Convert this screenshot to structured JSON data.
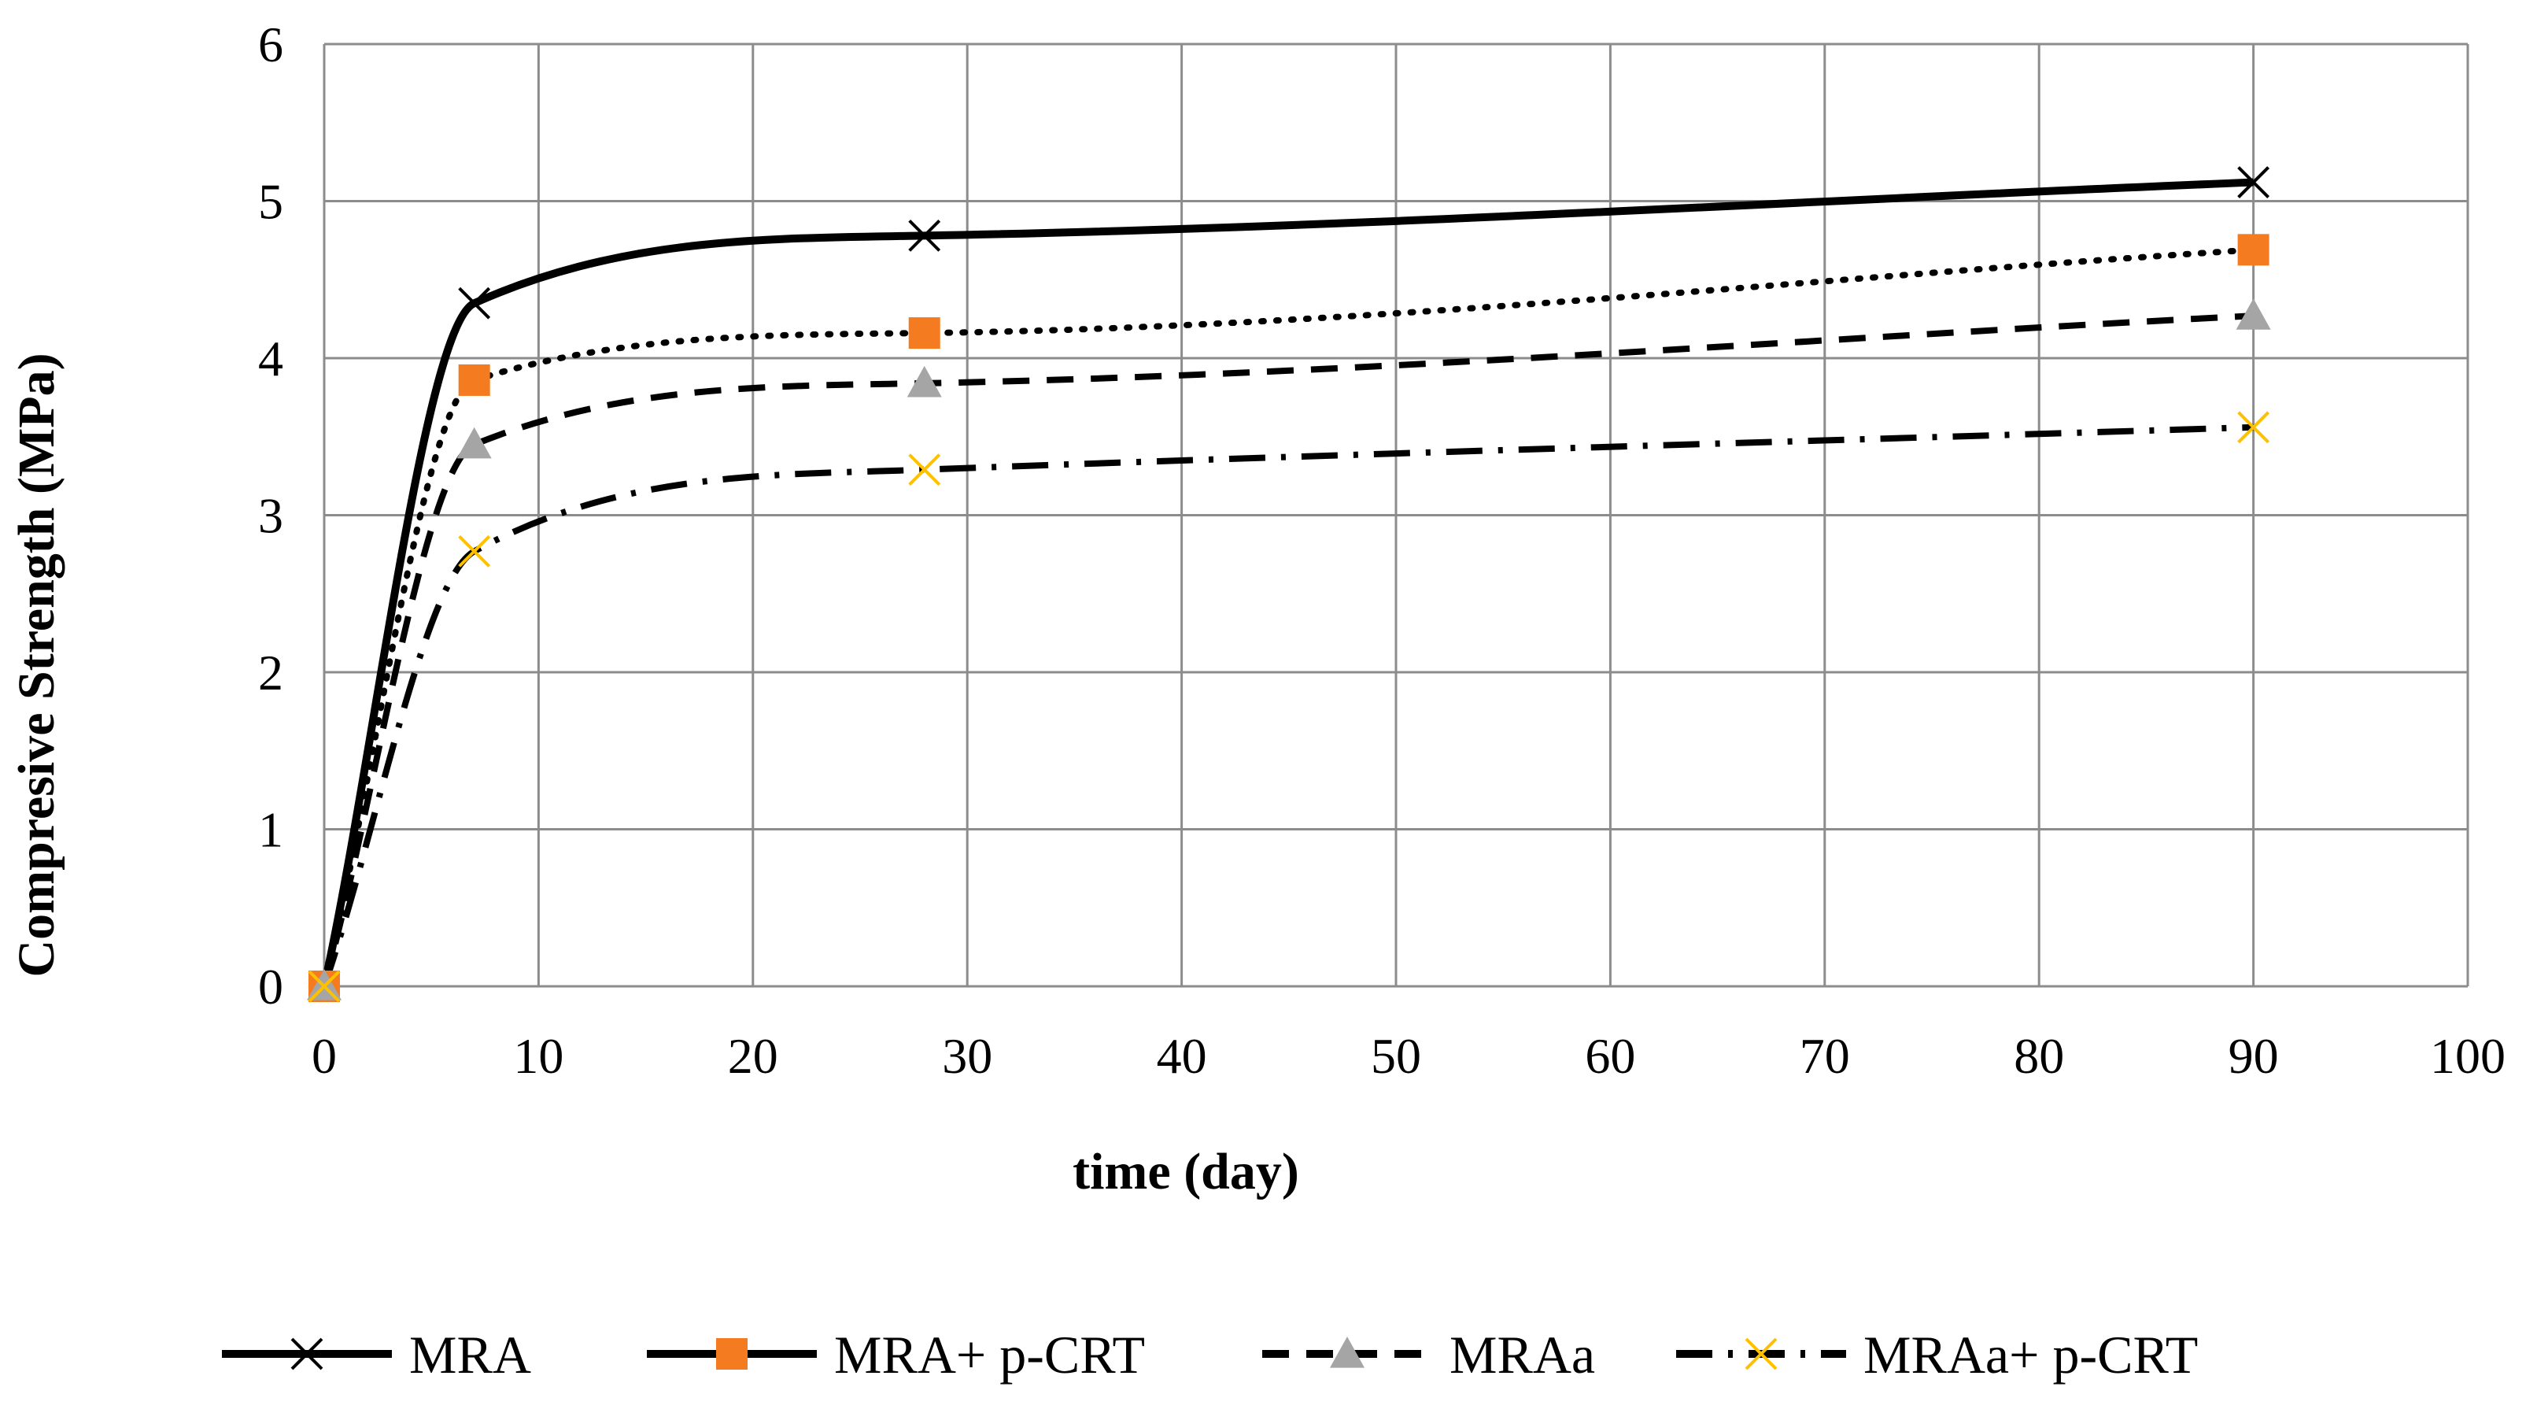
{
  "chart_data": {
    "type": "line",
    "title": "",
    "xlabel": "time (day)",
    "ylabel": "Compresive Strength (MPa)",
    "xlim": [
      0,
      100
    ],
    "ylim": [
      0,
      6
    ],
    "xticks": [
      0,
      10,
      20,
      30,
      40,
      50,
      60,
      70,
      80,
      90,
      100
    ],
    "yticks": [
      0,
      1,
      2,
      3,
      4,
      5,
      6
    ],
    "grid": true,
    "legend_position": "bottom",
    "series": [
      {
        "name": "MRA",
        "x": [
          0,
          7,
          28,
          90
        ],
        "values": [
          0,
          4.35,
          4.78,
          5.12
        ],
        "line_style": "solid",
        "marker": "x",
        "line_color": "#000000",
        "marker_color": "#000000"
      },
      {
        "name": "MRA+ p-CRT",
        "x": [
          0,
          7,
          28,
          90
        ],
        "values": [
          0,
          3.86,
          4.16,
          4.69
        ],
        "line_style": "dotted",
        "marker": "square",
        "line_color": "#000000",
        "marker_color": "#F47B20"
      },
      {
        "name": "MRAa",
        "x": [
          0,
          7,
          28,
          90
        ],
        "values": [
          0,
          3.45,
          3.84,
          4.27
        ],
        "line_style": "dashed",
        "marker": "triangle",
        "line_color": "#000000",
        "marker_color": "#A5A5A5"
      },
      {
        "name": "MRAa+ p-CRT",
        "x": [
          0,
          7,
          28,
          90
        ],
        "values": [
          0,
          2.77,
          3.29,
          3.56
        ],
        "line_style": "dashdot",
        "marker": "x",
        "line_color": "#000000",
        "marker_color": "#FFC000"
      }
    ]
  }
}
